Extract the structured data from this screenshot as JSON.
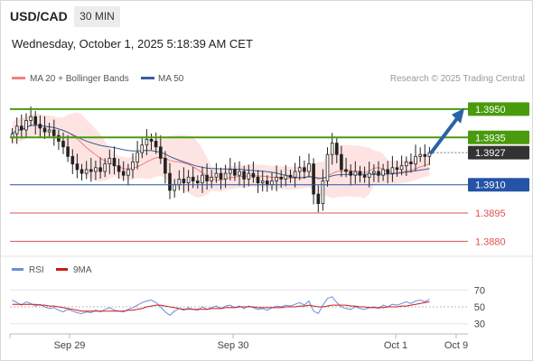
{
  "header": {
    "pair": "USD/CAD",
    "timeframe": "30 MIN",
    "datetime": "Wednesday, October 1, 2025 5:18:39 AM CET"
  },
  "legend": {
    "ma20_label": "MA 20 + Bollinger Bands",
    "ma50_label": "MA 50",
    "copyright": "Research © 2025 Trading Central",
    "rsi_label": "RSI",
    "ma9_label": "9MA"
  },
  "colors": {
    "resistance": "#4a9a0e",
    "support": "#2553a6",
    "weak_support": "#e05050",
    "current": "#333333",
    "bollinger_fill": "#fde1df",
    "ma20": "#f08080",
    "ma50": "#3a5f99",
    "rsi": "#6a8fd8",
    "rsi_ma": "#cc1a1a",
    "arrow": "#2b61a8"
  },
  "chart_data": [
    {
      "type": "candlestick",
      "title": "USD/CAD 30 MIN",
      "ylim": [
        1.3874,
        1.396
      ],
      "x_ticks": [
        "Sep 29",
        "Sep 30",
        "Oct 1",
        "Oct 9"
      ],
      "levels": [
        {
          "value": 1.395,
          "label": "1.3950",
          "kind": "resistance"
        },
        {
          "value": 1.3935,
          "label": "1.3935",
          "kind": "resistance"
        },
        {
          "value": 1.3927,
          "label": "1.3927",
          "kind": "current"
        },
        {
          "value": 1.391,
          "label": "1.3910",
          "kind": "support"
        },
        {
          "value": 1.3895,
          "label": "1.3895",
          "kind": "weak-support"
        },
        {
          "value": 1.388,
          "label": "1.3880",
          "kind": "weak-support"
        }
      ],
      "series": [
        {
          "name": "USD/CAD",
          "close": [
            1.3937,
            1.3941,
            1.3939,
            1.3944,
            1.3946,
            1.3942,
            1.394,
            1.3938,
            1.3939,
            1.3936,
            1.3933,
            1.393,
            1.3925,
            1.3921,
            1.3918,
            1.3916,
            1.3918,
            1.3917,
            1.3919,
            1.3917,
            1.3921,
            1.3924,
            1.392,
            1.3917,
            1.3915,
            1.3918,
            1.3922,
            1.3927,
            1.3931,
            1.3934,
            1.3933,
            1.393,
            1.3924,
            1.3916,
            1.3907,
            1.391,
            1.3913,
            1.3911,
            1.3914,
            1.3912,
            1.3911,
            1.3915,
            1.3912,
            1.3914,
            1.3916,
            1.3913,
            1.3916,
            1.3918,
            1.3915,
            1.3917,
            1.3913,
            1.3916,
            1.3914,
            1.3911,
            1.3912,
            1.391,
            1.3912,
            1.3914,
            1.3913,
            1.3915,
            1.3914,
            1.3917,
            1.3919,
            1.3917,
            1.3921,
            1.3905,
            1.39,
            1.3912,
            1.3926,
            1.3932,
            1.3926,
            1.3918,
            1.3917,
            1.3915,
            1.3917,
            1.3915,
            1.3914,
            1.3916,
            1.3917,
            1.3915,
            1.3918,
            1.3916,
            1.3919,
            1.3918,
            1.392,
            1.3922,
            1.3921,
            1.3925,
            1.3926,
            1.3925,
            1.3927
          ]
        }
      ]
    },
    {
      "type": "line",
      "ylim": [
        20,
        80
      ],
      "y_ticks": [
        70,
        50,
        30
      ],
      "series": [
        {
          "name": "RSI",
          "values": [
            58,
            55,
            52,
            56,
            54,
            51,
            53,
            50,
            48,
            49,
            46,
            44,
            47,
            45,
            43,
            42,
            44,
            43,
            46,
            44,
            47,
            49,
            46,
            45,
            44,
            47,
            49,
            52,
            55,
            57,
            58,
            55,
            50,
            44,
            40,
            45,
            48,
            46,
            49,
            47,
            46,
            50,
            47,
            49,
            51,
            48,
            51,
            52,
            49,
            51,
            48,
            51,
            49,
            47,
            48,
            46,
            49,
            51,
            50,
            52,
            51,
            53,
            55,
            52,
            57,
            45,
            42,
            52,
            60,
            62,
            55,
            50,
            48,
            47,
            50,
            48,
            47,
            49,
            50,
            48,
            52,
            50,
            53,
            52,
            54,
            56,
            54,
            57,
            58,
            56,
            59
          ]
        },
        {
          "name": "9MA",
          "values": [
            53,
            53,
            53,
            53,
            53,
            53,
            52,
            52,
            51,
            51,
            50,
            49,
            48,
            47,
            46,
            45,
            45,
            45,
            45,
            45,
            45,
            45,
            45,
            45,
            45,
            46,
            46,
            47,
            48,
            50,
            51,
            52,
            52,
            51,
            50,
            49,
            48,
            47,
            47,
            47,
            47,
            47,
            47,
            48,
            48,
            48,
            49,
            49,
            49,
            50,
            50,
            50,
            50,
            49,
            49,
            49,
            49,
            49,
            49,
            50,
            50,
            50,
            51,
            51,
            52,
            51,
            50,
            50,
            51,
            52,
            52,
            52,
            52,
            51,
            51,
            50,
            50,
            49,
            49,
            49,
            49,
            50,
            50,
            50,
            51,
            51,
            52,
            53,
            54,
            55,
            56
          ]
        }
      ]
    }
  ]
}
